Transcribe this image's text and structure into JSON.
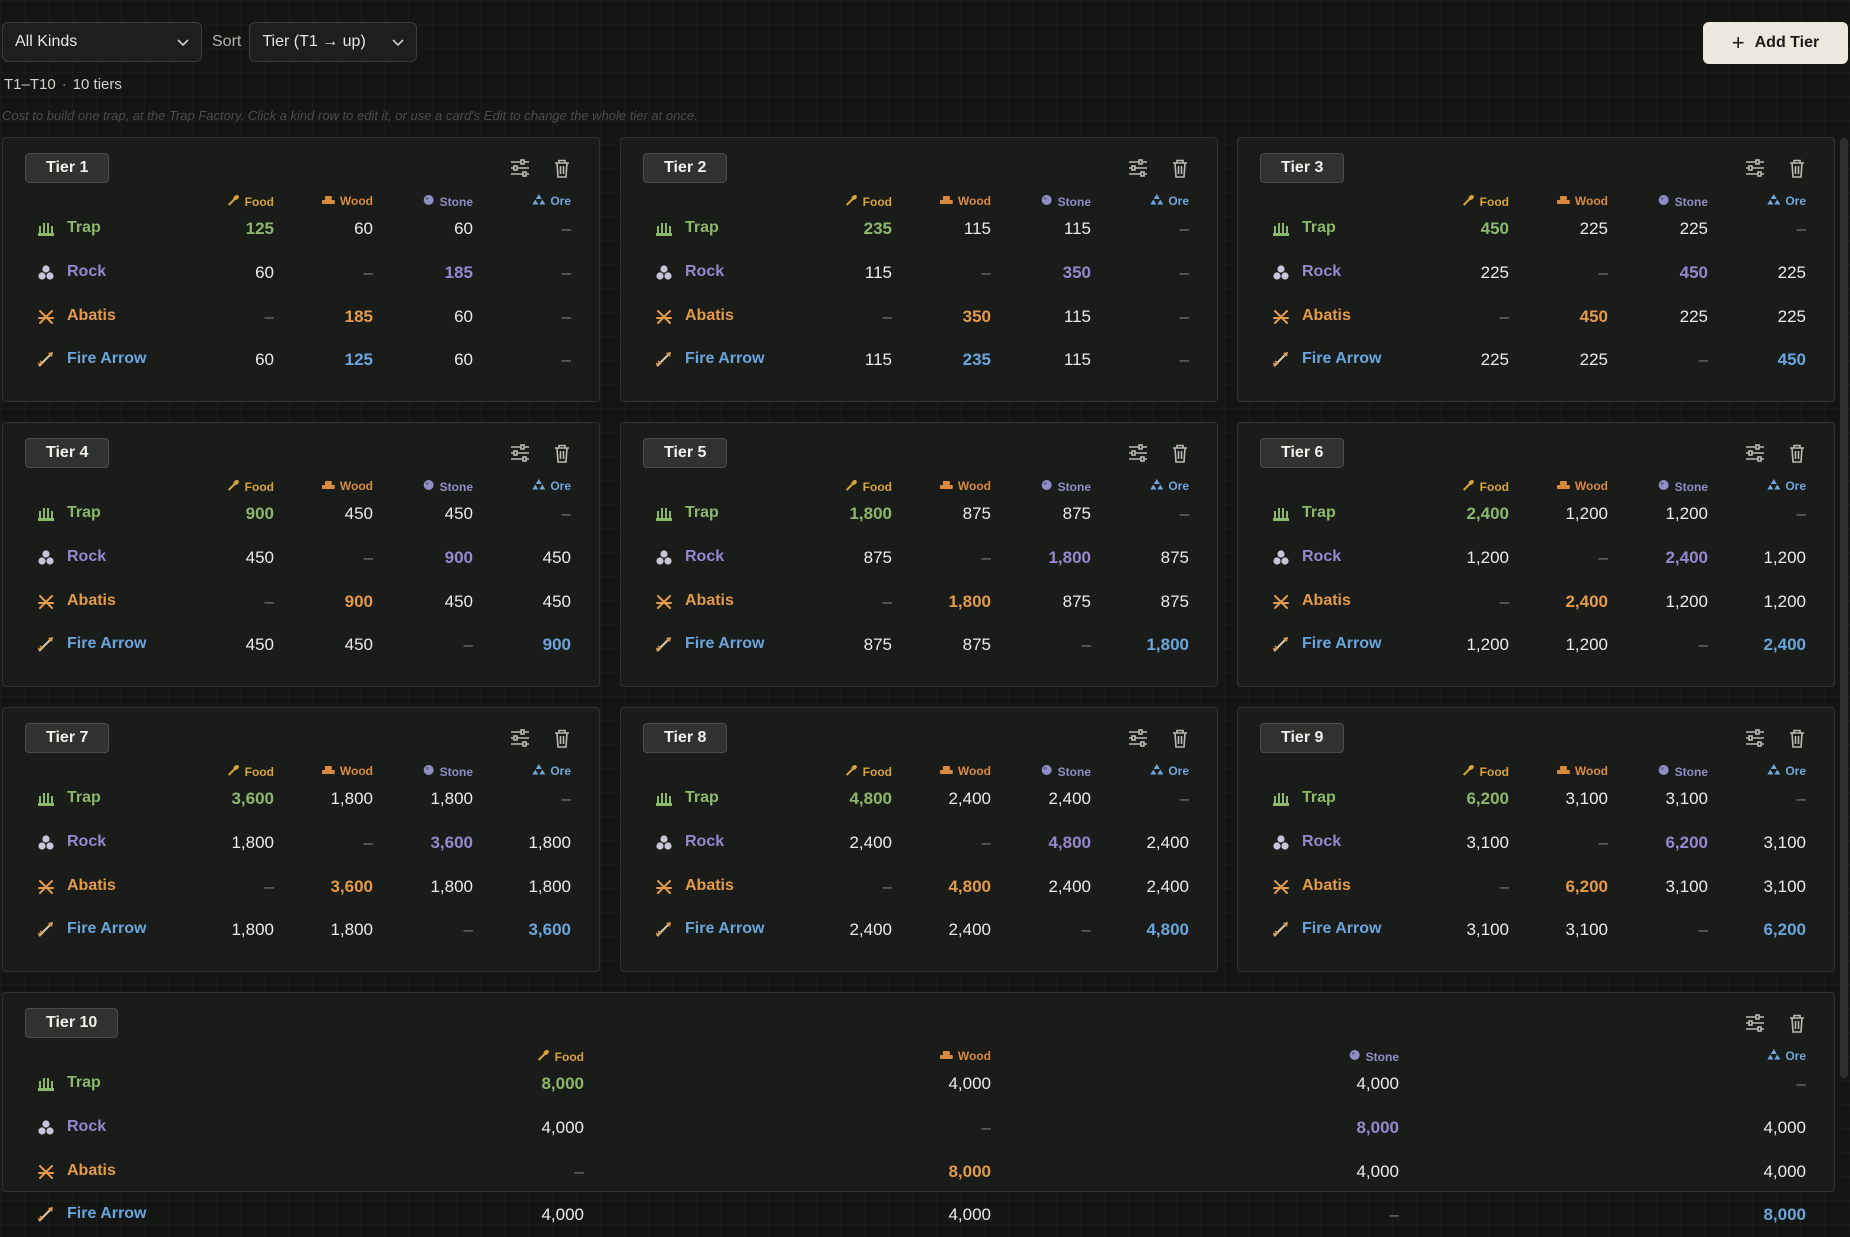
{
  "toolbar": {
    "kind_filter": "All Kinds",
    "sort_label": "Sort",
    "sort_value": "Tier (T1 → up)",
    "add_button": "Add Tier"
  },
  "summary": {
    "range": "T1–T10",
    "separator": "·",
    "count": "10 tiers"
  },
  "hint": "Cost to build one trap, at the Trap Factory. Click a kind row to edit it, or use a card's Edit to change the whole tier at once.",
  "resources": [
    {
      "key": "food",
      "label": "Food",
      "icon": "food-icon",
      "color": "#d8a33a"
    },
    {
      "key": "wood",
      "label": "Wood",
      "icon": "wood-icon",
      "color": "#d98a3f"
    },
    {
      "key": "stone",
      "label": "Stone",
      "icon": "stone-icon",
      "color": "#8f8ec6"
    },
    {
      "key": "ore",
      "label": "Ore",
      "icon": "ore-icon",
      "color": "#71a6d8"
    }
  ],
  "kinds": [
    {
      "key": "trap",
      "label": "Trap",
      "icon": "trap-icon",
      "color": "#8bb86a"
    },
    {
      "key": "rock",
      "label": "Rock",
      "icon": "rock-icon",
      "color": "#9887cf"
    },
    {
      "key": "abatis",
      "label": "Abatis",
      "icon": "abatis-icon",
      "color": "#e39a4a"
    },
    {
      "key": "fire",
      "label": "Fire Arrow",
      "icon": "fire-arrow-icon",
      "color": "#6aa5dd"
    }
  ],
  "tiers": [
    {
      "label": "Tier 1",
      "rows": [
        [
          "125",
          "60",
          "60",
          "–"
        ],
        [
          "60",
          "–",
          "185",
          "–"
        ],
        [
          "–",
          "185",
          "60",
          "–"
        ],
        [
          "60",
          "125",
          "60",
          "–"
        ]
      ]
    },
    {
      "label": "Tier 2",
      "rows": [
        [
          "235",
          "115",
          "115",
          "–"
        ],
        [
          "115",
          "–",
          "350",
          "–"
        ],
        [
          "–",
          "350",
          "115",
          "–"
        ],
        [
          "115",
          "235",
          "115",
          "–"
        ]
      ]
    },
    {
      "label": "Tier 3",
      "rows": [
        [
          "450",
          "225",
          "225",
          "–"
        ],
        [
          "225",
          "–",
          "450",
          "225"
        ],
        [
          "–",
          "450",
          "225",
          "225"
        ],
        [
          "225",
          "225",
          "–",
          "450"
        ]
      ]
    },
    {
      "label": "Tier 4",
      "rows": [
        [
          "900",
          "450",
          "450",
          "–"
        ],
        [
          "450",
          "–",
          "900",
          "450"
        ],
        [
          "–",
          "900",
          "450",
          "450"
        ],
        [
          "450",
          "450",
          "–",
          "900"
        ]
      ]
    },
    {
      "label": "Tier 5",
      "rows": [
        [
          "1,800",
          "875",
          "875",
          "–"
        ],
        [
          "875",
          "–",
          "1,800",
          "875"
        ],
        [
          "–",
          "1,800",
          "875",
          "875"
        ],
        [
          "875",
          "875",
          "–",
          "1,800"
        ]
      ]
    },
    {
      "label": "Tier 6",
      "rows": [
        [
          "2,400",
          "1,200",
          "1,200",
          "–"
        ],
        [
          "1,200",
          "–",
          "2,400",
          "1,200"
        ],
        [
          "–",
          "2,400",
          "1,200",
          "1,200"
        ],
        [
          "1,200",
          "1,200",
          "–",
          "2,400"
        ]
      ]
    },
    {
      "label": "Tier 7",
      "rows": [
        [
          "3,600",
          "1,800",
          "1,800",
          "–"
        ],
        [
          "1,800",
          "–",
          "3,600",
          "1,800"
        ],
        [
          "–",
          "3,600",
          "1,800",
          "1,800"
        ],
        [
          "1,800",
          "1,800",
          "–",
          "3,600"
        ]
      ]
    },
    {
      "label": "Tier 8",
      "rows": [
        [
          "4,800",
          "2,400",
          "2,400",
          "–"
        ],
        [
          "2,400",
          "–",
          "4,800",
          "2,400"
        ],
        [
          "–",
          "4,800",
          "2,400",
          "2,400"
        ],
        [
          "2,400",
          "2,400",
          "–",
          "4,800"
        ]
      ]
    },
    {
      "label": "Tier 9",
      "rows": [
        [
          "6,200",
          "3,100",
          "3,100",
          "–"
        ],
        [
          "3,100",
          "–",
          "6,200",
          "3,100"
        ],
        [
          "–",
          "6,200",
          "3,100",
          "3,100"
        ],
        [
          "3,100",
          "3,100",
          "–",
          "6,200"
        ]
      ]
    },
    {
      "label": "Tier 10",
      "rows": [
        [
          "8,000",
          "4,000",
          "4,000",
          "–"
        ],
        [
          "4,000",
          "–",
          "8,000",
          "4,000"
        ],
        [
          "–",
          "8,000",
          "4,000",
          "4,000"
        ],
        [
          "4,000",
          "4,000",
          "–",
          "8,000"
        ]
      ]
    }
  ]
}
